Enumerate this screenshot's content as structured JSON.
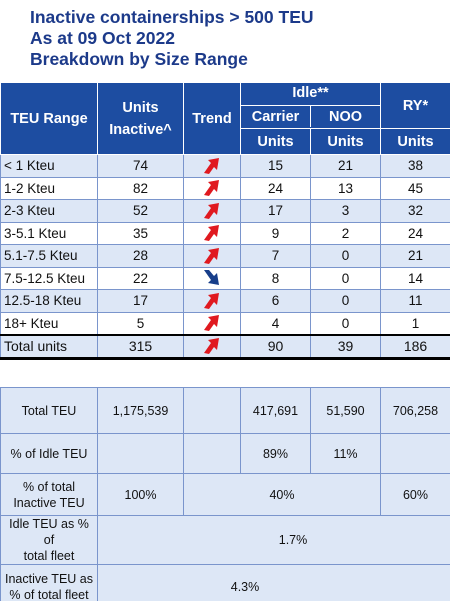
{
  "title": {
    "line1": "Inactive containerships > 500 TEU",
    "line2": "As at 09 Oct 2022",
    "line3": "Breakdown by Size Range"
  },
  "header": {
    "teu_range": "TEU Range",
    "units_inactive_l1": "Units",
    "units_inactive_l2": "Inactive^",
    "trend": "Trend",
    "idle": "Idle**",
    "ry": "RY*",
    "carrier": "Carrier",
    "noo": "NOO",
    "units_carrier": "Units",
    "units_noo": "Units",
    "units_ry": "Units"
  },
  "rows": [
    {
      "range": "< 1 Kteu",
      "inactive": "74",
      "trend": "up",
      "carrier": "15",
      "noo": "21",
      "ry": "38"
    },
    {
      "range": "1-2 Kteu",
      "inactive": "82",
      "trend": "up",
      "carrier": "24",
      "noo": "13",
      "ry": "45"
    },
    {
      "range": "2-3 Kteu",
      "inactive": "52",
      "trend": "up",
      "carrier": "17",
      "noo": "3",
      "ry": "32"
    },
    {
      "range": "3-5.1 Kteu",
      "inactive": "35",
      "trend": "up",
      "carrier": "9",
      "noo": "2",
      "ry": "24"
    },
    {
      "range": "5.1-7.5 Kteu",
      "inactive": "28",
      "trend": "up",
      "carrier": "7",
      "noo": "0",
      "ry": "21"
    },
    {
      "range": "7.5-12.5 Kteu",
      "inactive": "22",
      "trend": "down",
      "carrier": "8",
      "noo": "0",
      "ry": "14"
    },
    {
      "range": "12.5-18 Kteu",
      "inactive": "17",
      "trend": "up",
      "carrier": "6",
      "noo": "0",
      "ry": "11"
    },
    {
      "range": "18+ Kteu",
      "inactive": "5",
      "trend": "up",
      "carrier": "4",
      "noo": "0",
      "ry": "1"
    }
  ],
  "total": {
    "label": "Total units",
    "inactive": "315",
    "trend": "up",
    "carrier": "90",
    "noo": "39",
    "ry": "186"
  },
  "summary": {
    "total_teu": {
      "label": "Total TEU",
      "inactive": "1,175,539",
      "carrier": "417,691",
      "noo": "51,590",
      "ry": "706,258"
    },
    "pct_idle": {
      "label": "% of Idle TEU",
      "carrier": "89%",
      "noo": "11%"
    },
    "pct_total_inactive": {
      "label_l1": "% of total",
      "label_l2": "Inactive TEU",
      "inactive": "100%",
      "idle": "40%",
      "ry": "60%"
    },
    "idle_pct_fleet": {
      "label_l1": "Idle TEU as % of",
      "label_l2": "total fleet",
      "value": "1.7%"
    },
    "inactive_pct_fleet": {
      "label_l1": "Inactive TEU as",
      "label_l2": "% of total fleet",
      "value": "4.3%"
    }
  },
  "colors": {
    "header_bg": "#1d4da1",
    "title": "#1c3a8a",
    "row_shade": "#dde7f6",
    "arrow_up": "#e0191f",
    "arrow_down": "#173e8a"
  }
}
